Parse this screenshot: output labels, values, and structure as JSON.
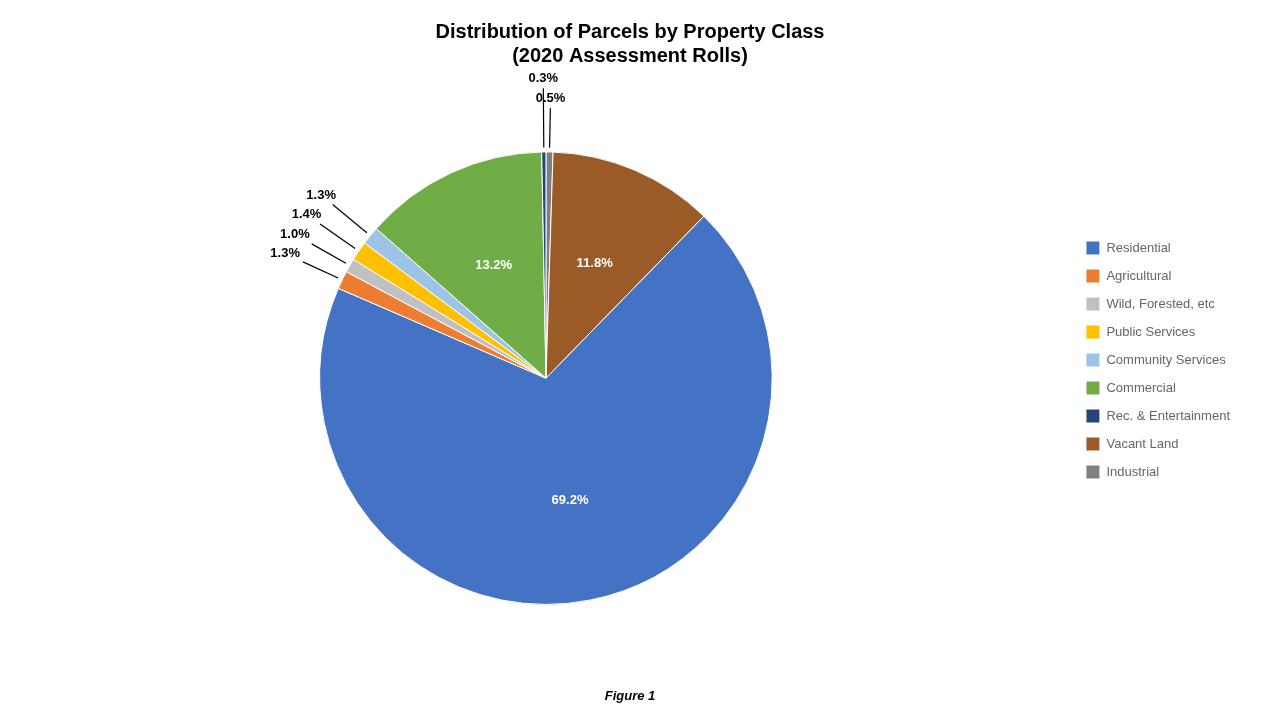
{
  "chart_data": {
    "type": "pie",
    "title": "Distribution of Parcels by Property Class\n(2020 Assessment Rolls)",
    "caption": "Figure 1",
    "categories": [
      "Industrial",
      "Vacant Land",
      "Residential",
      "Agricultural",
      "Wild, Forested, etc",
      "Public Services",
      "Community Services",
      "Commercial",
      "Rec. & Entertainment"
    ],
    "values": [
      0.5,
      11.8,
      69.2,
      1.3,
      1.0,
      1.4,
      1.3,
      13.2,
      0.3
    ],
    "value_labels": [
      "0.5%",
      "11.8%",
      "69.2%",
      "1.3%",
      "1.0%",
      "1.4%",
      "1.3%",
      "13.2%",
      "0.3%"
    ],
    "colors": [
      "#7F7F7F",
      "#9B5B27",
      "#4472C4",
      "#ED7D31",
      "#C0C0C0",
      "#FFC000",
      "#9DC3E6",
      "#70AD47",
      "#264478"
    ],
    "data_labels": true,
    "legend": "right",
    "legend_entries": [
      "Residential",
      "Agricultural",
      "Wild, Forested, etc",
      "Public Services",
      "Community Services",
      "Commercial",
      "Rec. & Entertainment",
      "Vacant Land",
      "Industrial"
    ]
  }
}
